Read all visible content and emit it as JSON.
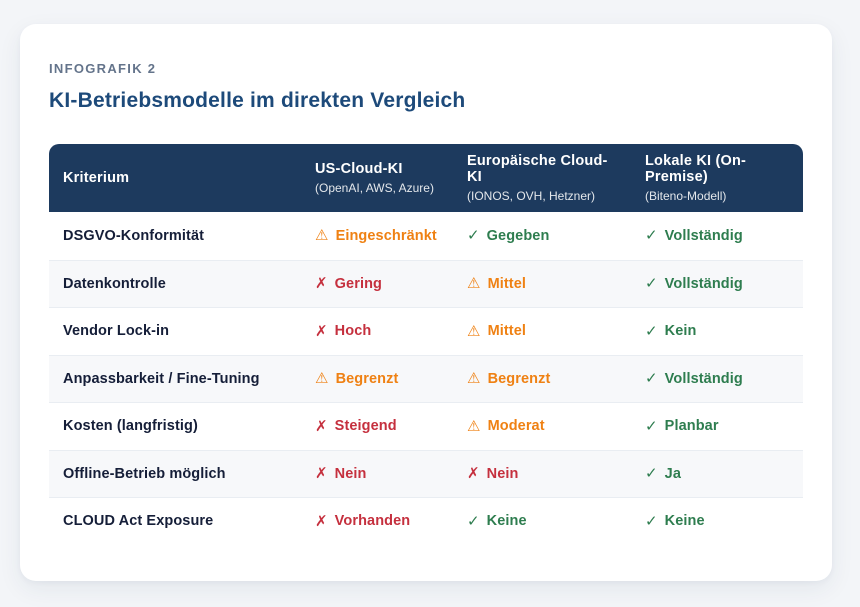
{
  "page": {
    "background_color": "#f3f5f8"
  },
  "card": {
    "eyebrow": "INFOGRAFIK 2",
    "title": "KI-Betriebsmodelle im direkten Vergleich",
    "title_color": "#1d4a7a",
    "background_color": "#ffffff"
  },
  "table": {
    "header": {
      "background_color": "#1d3a5e",
      "text_color": "#ffffff",
      "criterion_label": "Kriterium",
      "columns": [
        {
          "title": "US-Cloud-KI",
          "subtitle": "(OpenAI, AWS, Azure)"
        },
        {
          "title": "Europäische Cloud-KI",
          "subtitle": "(IONOS, OVH, Hetzner)"
        },
        {
          "title": "Lokale KI (On-Premise)",
          "subtitle": "(Biteno-Modell)"
        }
      ]
    },
    "status_style": {
      "icons": {
        "ok": "✓",
        "warn": "⚠",
        "bad": "✗"
      },
      "icon_names": {
        "ok": "check-icon",
        "warn": "warning-icon",
        "bad": "cross-icon"
      },
      "colors": {
        "ok": "#2e7d4f",
        "warn": "#ef8113",
        "bad": "#c5303e"
      }
    },
    "rows": [
      {
        "criterion": "DSGVO-Konformität",
        "cells": [
          {
            "status": "warn",
            "label": "Eingeschränkt"
          },
          {
            "status": "ok",
            "label": "Gegeben"
          },
          {
            "status": "ok",
            "label": "Vollständig"
          }
        ]
      },
      {
        "criterion": "Datenkontrolle",
        "cells": [
          {
            "status": "bad",
            "label": "Gering"
          },
          {
            "status": "warn",
            "label": "Mittel"
          },
          {
            "status": "ok",
            "label": "Vollständig"
          }
        ]
      },
      {
        "criterion": "Vendor Lock-in",
        "cells": [
          {
            "status": "bad",
            "label": "Hoch"
          },
          {
            "status": "warn",
            "label": "Mittel"
          },
          {
            "status": "ok",
            "label": "Kein"
          }
        ]
      },
      {
        "criterion": "Anpassbarkeit / Fine-Tuning",
        "cells": [
          {
            "status": "warn",
            "label": "Begrenzt"
          },
          {
            "status": "warn",
            "label": "Begrenzt"
          },
          {
            "status": "ok",
            "label": "Vollständig"
          }
        ]
      },
      {
        "criterion": "Kosten (langfristig)",
        "cells": [
          {
            "status": "bad",
            "label": "Steigend"
          },
          {
            "status": "warn",
            "label": "Moderat"
          },
          {
            "status": "ok",
            "label": "Planbar"
          }
        ]
      },
      {
        "criterion": "Offline-Betrieb möglich",
        "cells": [
          {
            "status": "bad",
            "label": "Nein"
          },
          {
            "status": "bad",
            "label": "Nein"
          },
          {
            "status": "ok",
            "label": "Ja"
          }
        ]
      },
      {
        "criterion": "CLOUD Act Exposure",
        "cells": [
          {
            "status": "bad",
            "label": "Vorhanden"
          },
          {
            "status": "ok",
            "label": "Keine"
          },
          {
            "status": "ok",
            "label": "Keine"
          }
        ]
      }
    ]
  }
}
